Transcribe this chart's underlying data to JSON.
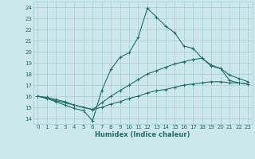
{
  "xlabel": "Humidex (Indice chaleur)",
  "xlim": [
    -0.5,
    23.5
  ],
  "ylim": [
    13.5,
    24.5
  ],
  "yticks": [
    14,
    15,
    16,
    17,
    18,
    19,
    20,
    21,
    22,
    23,
    24
  ],
  "xticks": [
    0,
    1,
    2,
    3,
    4,
    5,
    6,
    7,
    8,
    9,
    10,
    11,
    12,
    13,
    14,
    15,
    16,
    17,
    18,
    19,
    20,
    21,
    22,
    23
  ],
  "bg_color": "#cce8ed",
  "grid_color": "#a0cdd4",
  "line_color": "#1a7068",
  "lines": [
    {
      "x": [
        0,
        1,
        2,
        3,
        4,
        5,
        6,
        7,
        8,
        9,
        10,
        11,
        12,
        13,
        14,
        15,
        16,
        17,
        18,
        19,
        20,
        21,
        22,
        23
      ],
      "y": [
        16.0,
        15.8,
        15.5,
        15.2,
        14.9,
        14.7,
        13.8,
        16.5,
        18.4,
        19.5,
        19.9,
        21.3,
        23.9,
        23.1,
        22.3,
        21.7,
        20.5,
        20.3,
        19.4,
        18.7,
        18.5,
        17.4,
        17.2,
        17.1
      ]
    },
    {
      "x": [
        0,
        1,
        2,
        3,
        4,
        5,
        6,
        7,
        8,
        9,
        10,
        11,
        12,
        13,
        14,
        15,
        16,
        17,
        18,
        19,
        20,
        21,
        22,
        23
      ],
      "y": [
        16.0,
        15.9,
        15.7,
        15.5,
        15.2,
        15.0,
        14.8,
        15.4,
        16.0,
        16.5,
        17.0,
        17.5,
        18.0,
        18.3,
        18.6,
        18.9,
        19.1,
        19.3,
        19.4,
        18.8,
        18.5,
        17.9,
        17.6,
        17.3
      ]
    },
    {
      "x": [
        0,
        1,
        2,
        3,
        4,
        5,
        6,
        7,
        8,
        9,
        10,
        11,
        12,
        13,
        14,
        15,
        16,
        17,
        18,
        19,
        20,
        21,
        22,
        23
      ],
      "y": [
        16.0,
        15.8,
        15.6,
        15.4,
        15.2,
        15.0,
        14.8,
        15.0,
        15.3,
        15.5,
        15.8,
        16.0,
        16.3,
        16.5,
        16.6,
        16.8,
        17.0,
        17.1,
        17.2,
        17.3,
        17.3,
        17.2,
        17.2,
        17.1
      ]
    }
  ]
}
